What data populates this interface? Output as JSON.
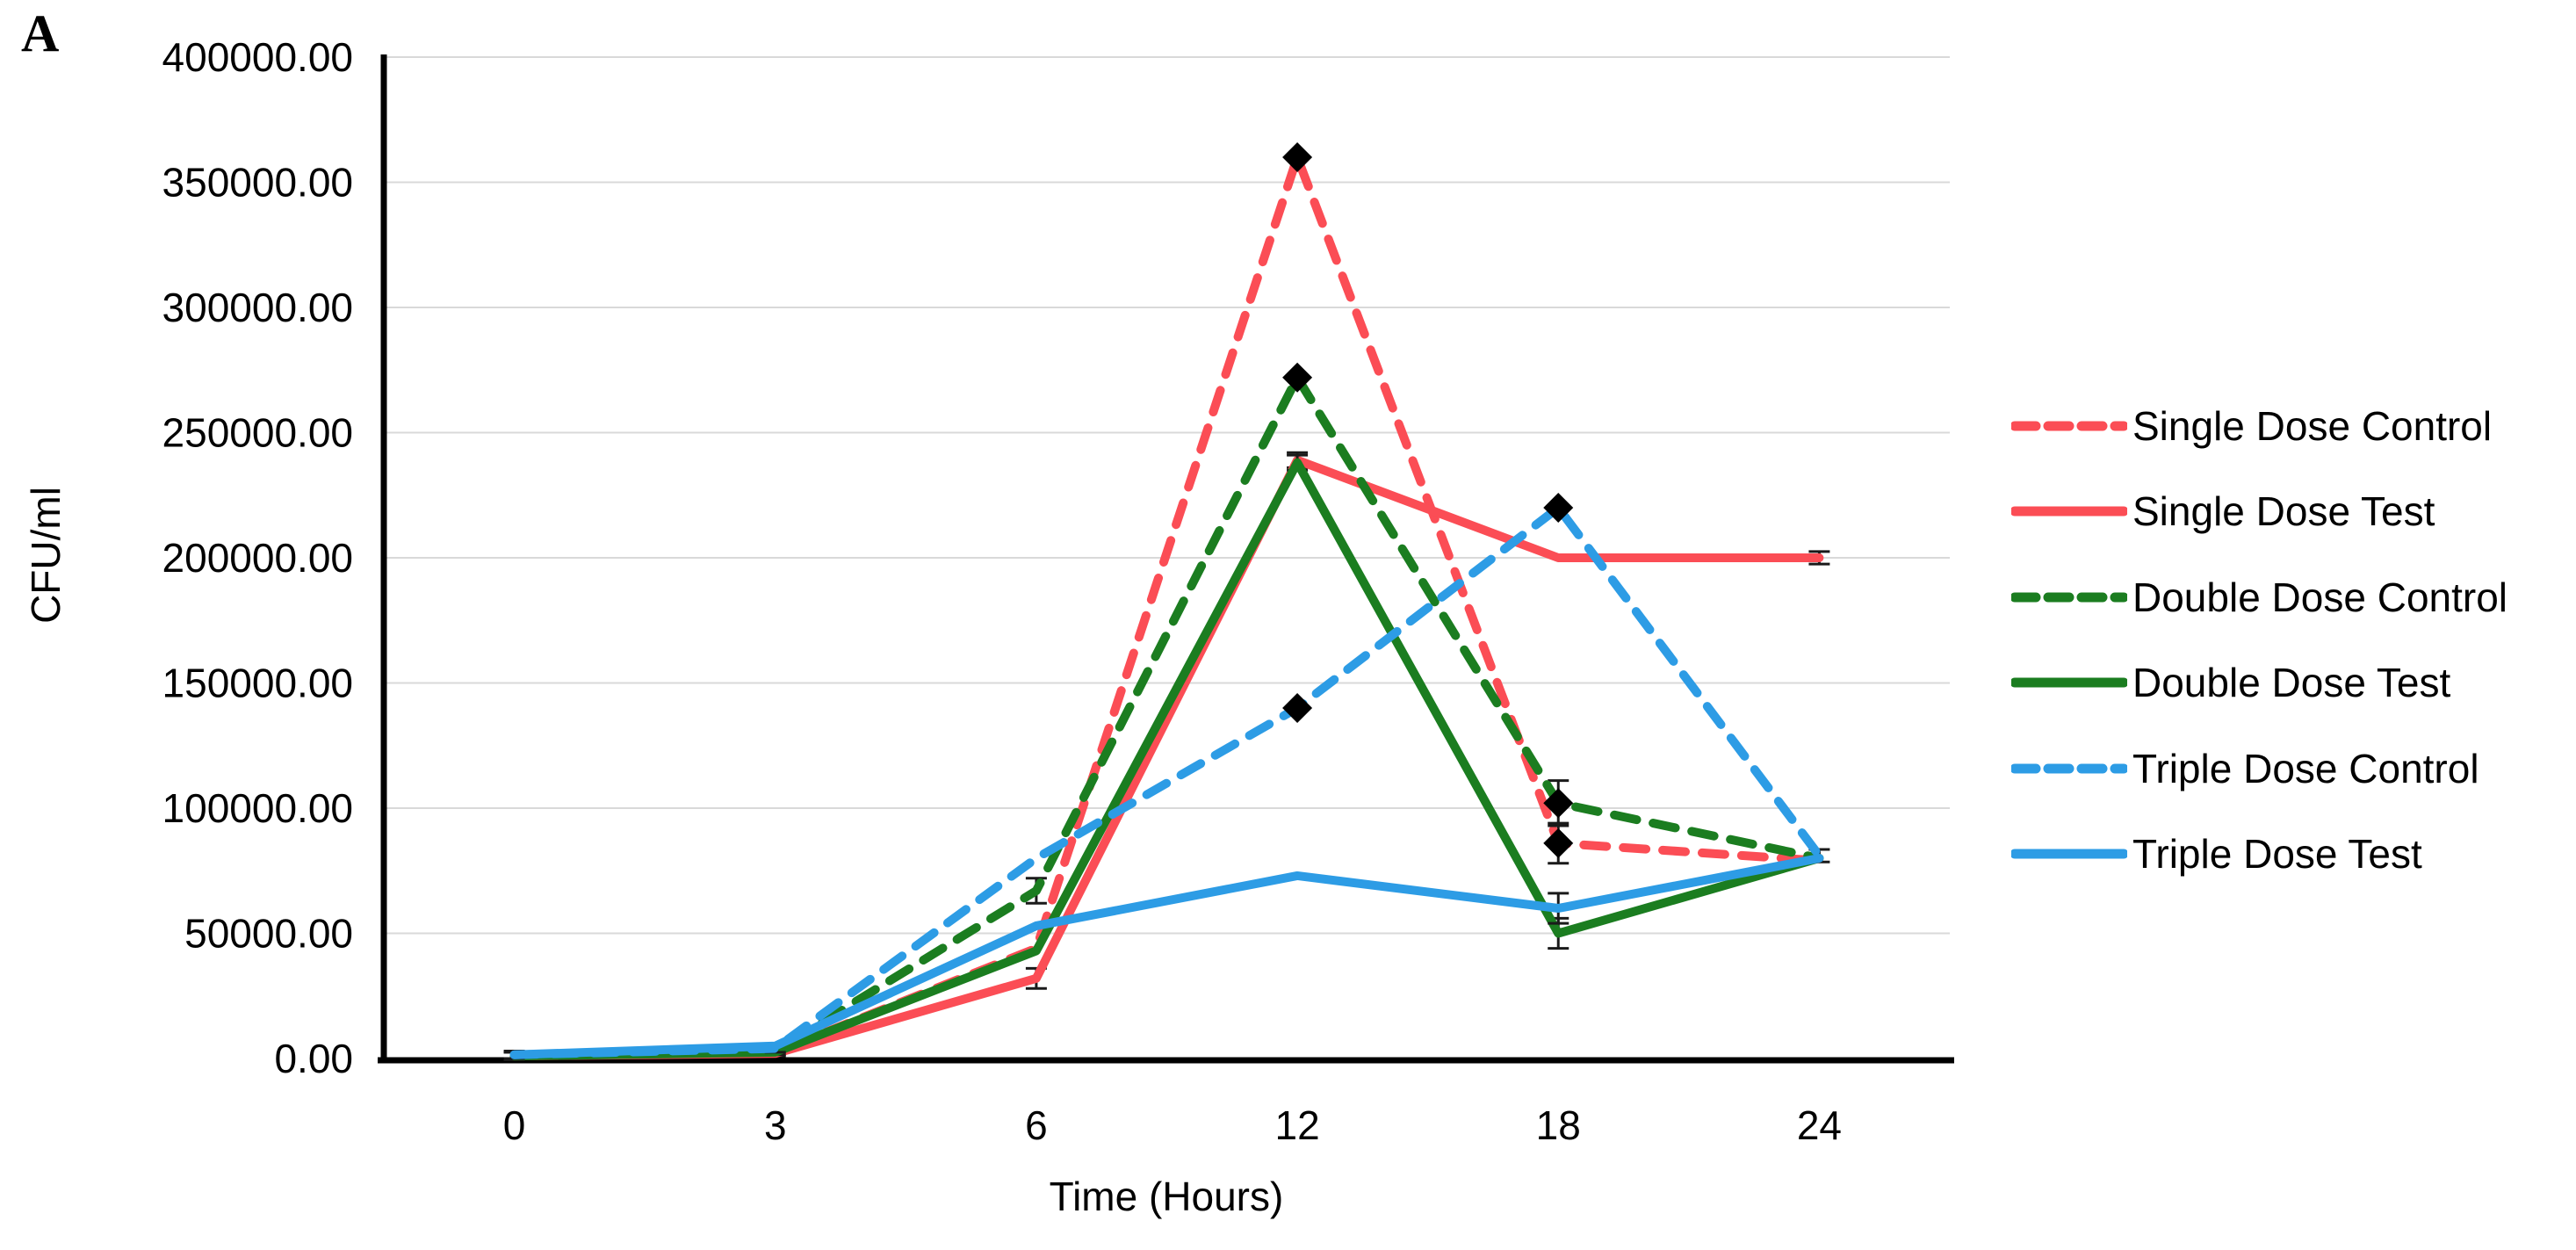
{
  "panel_label": "A",
  "chart_data": {
    "type": "line",
    "title": "",
    "x_categories": [
      "0",
      "3",
      "6",
      "12",
      "18",
      "24"
    ],
    "xlabel": "Time (Hours)",
    "ylabel": "CFU/ml",
    "ylim": [
      0,
      400000
    ],
    "y_tick_step": 50000,
    "y_tick_labels": [
      "400000.00",
      "350000.00",
      "300000.00",
      "250000.00",
      "200000.00",
      "150000.00",
      "100000.00",
      "50000.00",
      "0.00"
    ],
    "grid": true,
    "legend_position": "right",
    "marker": {
      "shape": "diamond",
      "color": "#000000"
    },
    "series": [
      {
        "name": "Single Dose Control",
        "color": "#fb4d55",
        "style": "dashed",
        "values": [
          1000,
          2500,
          44000,
          360000,
          86000,
          79000
        ],
        "errors": {
          "0": 1500,
          "1": 1500,
          "4": 8000
        },
        "diamond_indices": [
          3,
          4
        ]
      },
      {
        "name": "Single Dose Test",
        "color": "#fb4d55",
        "style": "solid",
        "values": [
          1000,
          2000,
          32000,
          239000,
          200000,
          200000
        ],
        "errors": {
          "2": 4000,
          "3": 3000,
          "5": 2500
        },
        "diamond_indices": []
      },
      {
        "name": "Double Dose Control",
        "color": "#1b7d20",
        "style": "dashed",
        "values": [
          1000,
          3000,
          67000,
          272000,
          102000,
          80000
        ],
        "errors": {
          "0": 1500,
          "1": 1500,
          "2": 5000,
          "4": 9000
        },
        "diamond_indices": [
          3,
          4
        ]
      },
      {
        "name": "Double Dose Test",
        "color": "#1b7d20",
        "style": "solid",
        "values": [
          1000,
          2500,
          43000,
          238000,
          50000,
          80000
        ],
        "errors": {
          "3": 3000,
          "4": 6000
        },
        "diamond_indices": []
      },
      {
        "name": "Triple Dose Control",
        "color": "#2d9ce5",
        "style": "dashed",
        "values": [
          1500,
          4000,
          80000,
          140000,
          220000,
          81000
        ],
        "errors": {
          "0": 1500,
          "1": 1500,
          "5": 2500
        },
        "diamond_indices": [
          3,
          4
        ]
      },
      {
        "name": "Triple Dose Test",
        "color": "#2d9ce5",
        "style": "solid",
        "values": [
          1500,
          5000,
          53000,
          73000,
          60000,
          80000
        ],
        "errors": {
          "4": 6000
        },
        "diamond_indices": []
      }
    ]
  },
  "colors": {
    "grid": "#d9d9d9",
    "axis": "#000000",
    "text": "#000000",
    "error_bar": "#1a1a1a"
  }
}
